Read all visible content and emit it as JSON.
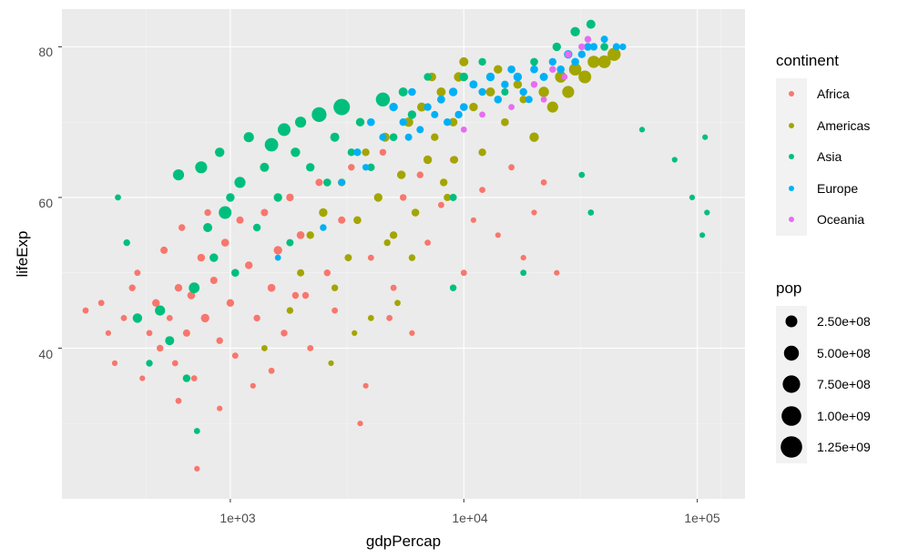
{
  "chart_data": {
    "type": "scatter",
    "xlabel": "gdpPercap",
    "ylabel": "lifeExp",
    "x_scale": "log10",
    "xlim": [
      190,
      160000
    ],
    "ylim": [
      20,
      85
    ],
    "x_ticks": [
      1000,
      10000,
      100000
    ],
    "x_tick_labels": [
      "1e+03",
      "1e+04",
      "1e+05"
    ],
    "y_ticks": [
      40,
      60,
      80
    ],
    "y_tick_labels": [
      "40",
      "60",
      "80"
    ],
    "grid": true,
    "background": "#ebebeb",
    "legend_position": "right",
    "color_legend": {
      "title": "continent",
      "entries": [
        {
          "label": "Africa",
          "color": "#F8766D"
        },
        {
          "label": "Americas",
          "color": "#A3A500"
        },
        {
          "label": "Asia",
          "color": "#00BF7D"
        },
        {
          "label": "Europe",
          "color": "#00B0F6"
        },
        {
          "label": "Oceania",
          "color": "#E76BF3"
        }
      ]
    },
    "size_legend": {
      "title": "pop",
      "entries": [
        {
          "label": "2.50e+08",
          "value": 250000000
        },
        {
          "label": "5.00e+08",
          "value": 500000000
        },
        {
          "label": "7.50e+08",
          "value": 750000000
        },
        {
          "label": "1.00e+09",
          "value": 1000000000
        },
        {
          "label": "1.25e+09",
          "value": 1250000000
        }
      ]
    },
    "series": [
      {
        "name": "Africa",
        "points": [
          [
            240,
            45,
            0.02
          ],
          [
            280,
            46,
            0.02
          ],
          [
            300,
            42,
            0.01
          ],
          [
            320,
            38,
            0.01
          ],
          [
            350,
            44,
            0.02
          ],
          [
            380,
            48,
            0.03
          ],
          [
            400,
            50,
            0.02
          ],
          [
            420,
            36,
            0.01
          ],
          [
            450,
            42,
            0.02
          ],
          [
            480,
            46,
            0.05
          ],
          [
            500,
            40,
            0.03
          ],
          [
            520,
            53,
            0.04
          ],
          [
            550,
            44,
            0.02
          ],
          [
            580,
            38,
            0.02
          ],
          [
            600,
            48,
            0.05
          ],
          [
            620,
            56,
            0.03
          ],
          [
            650,
            42,
            0.04
          ],
          [
            680,
            47,
            0.06
          ],
          [
            700,
            36,
            0.02
          ],
          [
            720,
            24,
            0.01
          ],
          [
            750,
            52,
            0.05
          ],
          [
            780,
            44,
            0.08
          ],
          [
            800,
            58,
            0.03
          ],
          [
            850,
            49,
            0.04
          ],
          [
            900,
            41,
            0.03
          ],
          [
            950,
            54,
            0.06
          ],
          [
            1000,
            46,
            0.05
          ],
          [
            1050,
            39,
            0.02
          ],
          [
            1100,
            57,
            0.04
          ],
          [
            1200,
            51,
            0.05
          ],
          [
            1300,
            44,
            0.03
          ],
          [
            1400,
            58,
            0.04
          ],
          [
            1500,
            48,
            0.06
          ],
          [
            1600,
            53,
            0.08
          ],
          [
            1700,
            42,
            0.03
          ],
          [
            1800,
            60,
            0.05
          ],
          [
            1900,
            47,
            0.03
          ],
          [
            2000,
            55,
            0.06
          ],
          [
            2200,
            40,
            0.02
          ],
          [
            2400,
            62,
            0.04
          ],
          [
            2600,
            50,
            0.03
          ],
          [
            2800,
            45,
            0.02
          ],
          [
            3000,
            57,
            0.04
          ],
          [
            3300,
            64,
            0.03
          ],
          [
            3600,
            30,
            0.01
          ],
          [
            4000,
            52,
            0.02
          ],
          [
            4500,
            66,
            0.03
          ],
          [
            5000,
            48,
            0.02
          ],
          [
            5500,
            60,
            0.03
          ],
          [
            6000,
            42,
            0.01
          ],
          [
            6500,
            63,
            0.03
          ],
          [
            7000,
            54,
            0.02
          ],
          [
            8000,
            59,
            0.02
          ],
          [
            9000,
            65,
            0.03
          ],
          [
            10000,
            50,
            0.02
          ],
          [
            11000,
            57,
            0.01
          ],
          [
            12000,
            61,
            0.02
          ],
          [
            14000,
            55,
            0.01
          ],
          [
            16000,
            64,
            0.02
          ],
          [
            18000,
            52,
            0.01
          ],
          [
            20000,
            58,
            0.01
          ],
          [
            22000,
            62,
            0.02
          ],
          [
            25000,
            50,
            0.01
          ],
          [
            3800,
            35,
            0.01
          ],
          [
            4800,
            44,
            0.02
          ],
          [
            1250,
            35,
            0.01
          ],
          [
            600,
            33,
            0.02
          ],
          [
            900,
            32,
            0.01
          ],
          [
            1500,
            37,
            0.02
          ],
          [
            2100,
            47,
            0.03
          ]
        ]
      },
      {
        "name": "Americas",
        "points": [
          [
            1400,
            40,
            0.02
          ],
          [
            1800,
            45,
            0.03
          ],
          [
            2000,
            50,
            0.04
          ],
          [
            2200,
            55,
            0.05
          ],
          [
            2500,
            58,
            0.08
          ],
          [
            2800,
            48,
            0.03
          ],
          [
            3000,
            62,
            0.05
          ],
          [
            3200,
            52,
            0.04
          ],
          [
            3500,
            57,
            0.06
          ],
          [
            3800,
            66,
            0.05
          ],
          [
            4000,
            44,
            0.02
          ],
          [
            4300,
            60,
            0.08
          ],
          [
            4600,
            68,
            0.1
          ],
          [
            5000,
            55,
            0.05
          ],
          [
            5400,
            63,
            0.08
          ],
          [
            5800,
            70,
            0.12
          ],
          [
            6200,
            58,
            0.06
          ],
          [
            6600,
            72,
            0.1
          ],
          [
            7000,
            65,
            0.08
          ],
          [
            7500,
            68,
            0.05
          ],
          [
            8000,
            74,
            0.1
          ],
          [
            8500,
            60,
            0.04
          ],
          [
            9000,
            70,
            0.08
          ],
          [
            9500,
            76,
            0.12
          ],
          [
            10000,
            78,
            0.1
          ],
          [
            11000,
            72,
            0.08
          ],
          [
            12000,
            66,
            0.05
          ],
          [
            13000,
            74,
            0.1
          ],
          [
            15000,
            70,
            0.06
          ],
          [
            17000,
            75,
            0.08
          ],
          [
            20000,
            68,
            0.12
          ],
          [
            22000,
            74,
            0.16
          ],
          [
            24000,
            72,
            0.2
          ],
          [
            26000,
            76,
            0.22
          ],
          [
            28000,
            74,
            0.25
          ],
          [
            30000,
            77,
            0.28
          ],
          [
            33000,
            76,
            0.3
          ],
          [
            36000,
            78,
            0.26
          ],
          [
            40000,
            78,
            0.3
          ],
          [
            44000,
            79,
            0.32
          ],
          [
            5200,
            46,
            0.02
          ],
          [
            3400,
            42,
            0.01
          ],
          [
            6000,
            52,
            0.03
          ],
          [
            8200,
            62,
            0.05
          ],
          [
            7300,
            76,
            0.08
          ],
          [
            9100,
            65,
            0.06
          ],
          [
            4700,
            54,
            0.03
          ],
          [
            2700,
            38,
            0.01
          ],
          [
            18000,
            73,
            0.05
          ],
          [
            14000,
            77,
            0.08
          ]
        ]
      },
      {
        "name": "Asia",
        "points": [
          [
            330,
            60,
            0.02
          ],
          [
            360,
            54,
            0.03
          ],
          [
            400,
            44,
            0.12
          ],
          [
            450,
            38,
            0.03
          ],
          [
            500,
            45,
            0.15
          ],
          [
            550,
            41,
            0.1
          ],
          [
            600,
            63,
            0.2
          ],
          [
            650,
            36,
            0.05
          ],
          [
            700,
            48,
            0.18
          ],
          [
            720,
            29,
            0.02
          ],
          [
            750,
            64,
            0.25
          ],
          [
            800,
            56,
            0.1
          ],
          [
            850,
            52,
            0.08
          ],
          [
            900,
            66,
            0.12
          ],
          [
            950,
            58,
            0.3
          ],
          [
            1000,
            60,
            0.08
          ],
          [
            1050,
            50,
            0.06
          ],
          [
            1100,
            62,
            0.2
          ],
          [
            1200,
            68,
            0.15
          ],
          [
            1300,
            56,
            0.05
          ],
          [
            1400,
            64,
            0.1
          ],
          [
            1500,
            67,
            0.35
          ],
          [
            1600,
            60,
            0.08
          ],
          [
            1700,
            69,
            0.3
          ],
          [
            1800,
            54,
            0.04
          ],
          [
            1900,
            66,
            0.12
          ],
          [
            2000,
            70,
            0.2
          ],
          [
            2200,
            64,
            0.08
          ],
          [
            2400,
            71,
            0.45
          ],
          [
            2600,
            62,
            0.06
          ],
          [
            2800,
            68,
            0.1
          ],
          [
            3000,
            72,
            0.6
          ],
          [
            3300,
            66,
            0.05
          ],
          [
            3600,
            70,
            0.08
          ],
          [
            4000,
            64,
            0.05
          ],
          [
            4500,
            73,
            0.4
          ],
          [
            5000,
            68,
            0.06
          ],
          [
            5500,
            74,
            0.1
          ],
          [
            6000,
            71,
            0.08
          ],
          [
            7000,
            76,
            0.05
          ],
          [
            8000,
            73,
            0.06
          ],
          [
            9000,
            60,
            0.04
          ],
          [
            10000,
            76,
            0.08
          ],
          [
            12000,
            78,
            0.05
          ],
          [
            15000,
            74,
            0.04
          ],
          [
            20000,
            78,
            0.06
          ],
          [
            25000,
            80,
            0.08
          ],
          [
            30000,
            82,
            0.12
          ],
          [
            35000,
            83,
            0.1
          ],
          [
            40000,
            80,
            0.06
          ],
          [
            32000,
            63,
            0.02
          ],
          [
            35000,
            58,
            0.02
          ],
          [
            58000,
            69,
            0.01
          ],
          [
            80000,
            65,
            0.01
          ],
          [
            95000,
            60,
            0.01
          ],
          [
            105000,
            55,
            0.01
          ],
          [
            110000,
            58,
            0.01
          ],
          [
            108000,
            68,
            0.01
          ],
          [
            18000,
            50,
            0.02
          ],
          [
            9000,
            48,
            0.03
          ]
        ]
      },
      {
        "name": "Europe",
        "points": [
          [
            1600,
            52,
            0.02
          ],
          [
            2500,
            56,
            0.03
          ],
          [
            3000,
            62,
            0.04
          ],
          [
            3500,
            66,
            0.05
          ],
          [
            4000,
            70,
            0.06
          ],
          [
            4500,
            68,
            0.04
          ],
          [
            5000,
            72,
            0.08
          ],
          [
            5500,
            70,
            0.05
          ],
          [
            6000,
            74,
            0.06
          ],
          [
            6500,
            69,
            0.04
          ],
          [
            7000,
            72,
            0.05
          ],
          [
            7500,
            71,
            0.04
          ],
          [
            8000,
            73,
            0.06
          ],
          [
            8500,
            70,
            0.05
          ],
          [
            9000,
            74,
            0.08
          ],
          [
            10000,
            72,
            0.06
          ],
          [
            11000,
            75,
            0.07
          ],
          [
            12000,
            74,
            0.05
          ],
          [
            13000,
            76,
            0.08
          ],
          [
            14000,
            73,
            0.06
          ],
          [
            15000,
            75,
            0.05
          ],
          [
            16000,
            77,
            0.06
          ],
          [
            17000,
            76,
            0.08
          ],
          [
            18000,
            74,
            0.05
          ],
          [
            20000,
            77,
            0.06
          ],
          [
            22000,
            76,
            0.07
          ],
          [
            24000,
            78,
            0.05
          ],
          [
            26000,
            77,
            0.06
          ],
          [
            28000,
            79,
            0.08
          ],
          [
            30000,
            78,
            0.06
          ],
          [
            32000,
            79,
            0.05
          ],
          [
            34000,
            80,
            0.06
          ],
          [
            36000,
            80,
            0.05
          ],
          [
            40000,
            81,
            0.04
          ],
          [
            45000,
            80,
            0.04
          ],
          [
            48000,
            80,
            0.03
          ],
          [
            3800,
            64,
            0.03
          ],
          [
            5800,
            68,
            0.04
          ],
          [
            9500,
            71,
            0.05
          ],
          [
            19000,
            73,
            0.04
          ]
        ]
      },
      {
        "name": "Oceania",
        "points": [
          [
            10000,
            69,
            0.02
          ],
          [
            12000,
            71,
            0.02
          ],
          [
            16000,
            72,
            0.02
          ],
          [
            20000,
            75,
            0.03
          ],
          [
            24000,
            77,
            0.03
          ],
          [
            28000,
            79,
            0.03
          ],
          [
            32000,
            80,
            0.03
          ],
          [
            34000,
            81,
            0.03
          ],
          [
            22000,
            73,
            0.02
          ],
          [
            27000,
            76,
            0.02
          ]
        ]
      }
    ]
  }
}
